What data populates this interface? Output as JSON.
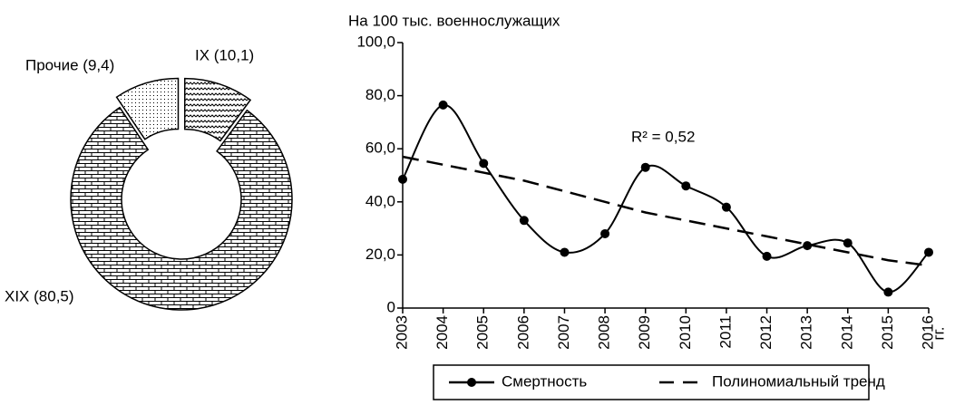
{
  "chart_data": [
    {
      "type": "donut",
      "categories": [
        "IX (10,1)",
        "XIX (80,5)",
        "Прочие (9,4)"
      ],
      "values": [
        10.1,
        80.5,
        9.4
      ]
    },
    {
      "type": "line",
      "ylabel": "На 100 тыс. военнослужащих",
      "xunit": "гг.",
      "annotation": "R² = 0,52",
      "x": [
        2003,
        2004,
        2005,
        2006,
        2007,
        2008,
        2009,
        2010,
        2011,
        2012,
        2013,
        2014,
        2015,
        2016
      ],
      "xlim": [
        2003,
        2016
      ],
      "xticks": [
        2003,
        2004,
        2005,
        2006,
        2007,
        2008,
        2009,
        2010,
        2011,
        2012,
        2013,
        2014,
        2015,
        2016
      ],
      "ylim": [
        0,
        100
      ],
      "yticks": [
        {
          "value": 0,
          "label": "0"
        },
        {
          "value": 20,
          "label": "20,0"
        },
        {
          "value": 40,
          "label": "40,0"
        },
        {
          "value": 60,
          "label": "60,0"
        },
        {
          "value": 80,
          "label": "80,0"
        },
        {
          "value": 100,
          "label": "100,0"
        }
      ],
      "legend": "bottom",
      "series": [
        {
          "name": "Смертность",
          "color": "#000000",
          "style": "smooth-markers",
          "values": [
            48.5,
            76.5,
            54.5,
            33,
            21,
            28,
            53,
            46,
            38,
            19.5,
            23.5,
            24.5,
            6,
            21
          ]
        },
        {
          "name": "Полиномиальный тренд",
          "color": "#000000",
          "style": "dashed",
          "values": [
            57,
            54,
            51,
            48,
            44,
            40,
            36,
            33,
            30,
            27,
            24,
            21,
            18,
            16
          ]
        }
      ]
    }
  ]
}
